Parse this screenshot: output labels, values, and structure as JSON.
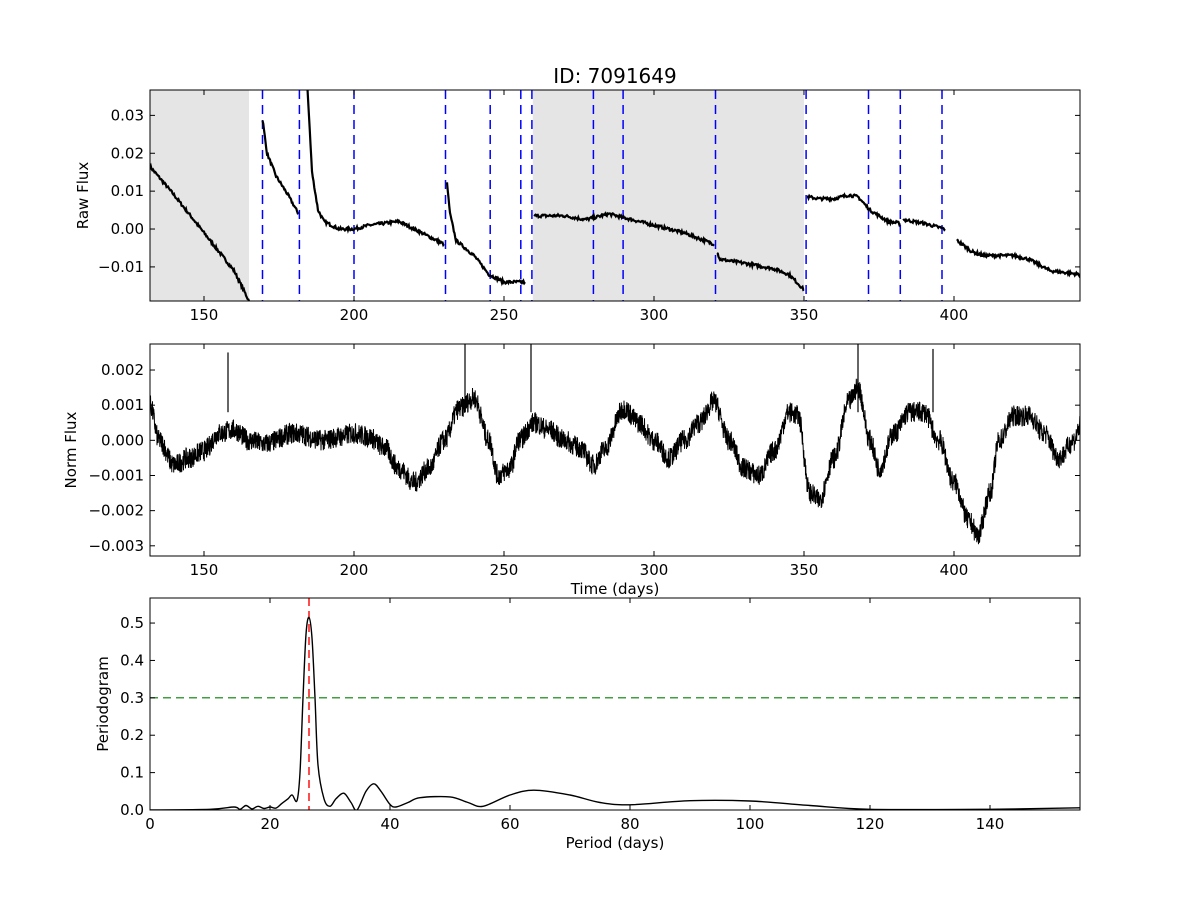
{
  "title": "ID: 7091649",
  "colors": {
    "line": "#000000",
    "marker": "#0000ff",
    "peak": "#ff0000",
    "threshold": "#008000",
    "shade": "#e5e5e5"
  },
  "chart_data": [
    {
      "type": "line",
      "name": "raw-flux",
      "ylabel": "Raw Flux",
      "xlabel": "",
      "xlim": [
        132,
        442
      ],
      "ylim": [
        -0.019,
        0.0367
      ],
      "xticks": [
        150,
        200,
        250,
        300,
        350,
        400
      ],
      "yticks": [
        -0.01,
        0.0,
        0.01,
        0.02,
        0.03
      ],
      "ytick_labels": [
        "−0.01",
        "0.00",
        "0.01",
        "0.02",
        "0.03"
      ],
      "shaded_regions": [
        [
          132,
          165
        ],
        [
          259.6,
          350
        ]
      ],
      "vertical_markers": [
        169.5,
        181.8,
        200,
        230.5,
        245.4,
        255.6,
        259.3,
        279.8,
        289.7,
        320.5,
        350.7,
        371.5,
        382.1,
        396
      ],
      "segments": [
        [
          [
            132,
            0.0165
          ],
          [
            140,
            0.009
          ],
          [
            150,
            -0.001
          ],
          [
            160,
            -0.011
          ],
          [
            165,
            -0.019
          ]
        ],
        [
          [
            169.5,
            0.029
          ],
          [
            171,
            0.02
          ],
          [
            174,
            0.014
          ],
          [
            178,
            0.009
          ],
          [
            181.5,
            0.004
          ]
        ],
        [
          [
            184.5,
            0.037
          ],
          [
            186,
            0.015
          ],
          [
            188,
            0.005
          ],
          [
            190,
            0.002
          ],
          [
            195,
            0.0
          ],
          [
            200,
            0.0
          ],
          [
            205,
            0.001
          ],
          [
            215,
            0.002
          ],
          [
            220,
            0.0
          ],
          [
            225,
            -0.002
          ],
          [
            230,
            -0.004
          ]
        ],
        [
          [
            231,
            0.012
          ],
          [
            232,
            0.004
          ],
          [
            234,
            -0.003
          ],
          [
            240,
            -0.007
          ],
          [
            245,
            -0.012
          ],
          [
            250,
            -0.014
          ],
          [
            257,
            -0.014
          ]
        ],
        [
          [
            260,
            0.0035
          ],
          [
            270,
            0.0035
          ],
          [
            277,
            0.0025
          ],
          [
            280,
            0.003
          ],
          [
            285,
            0.004
          ],
          [
            290,
            0.003
          ],
          [
            300,
            0.001
          ],
          [
            310,
            -0.001
          ],
          [
            320,
            -0.004
          ]
        ],
        [
          [
            321,
            -0.006
          ],
          [
            322,
            -0.008
          ],
          [
            330,
            -0.009
          ],
          [
            340,
            -0.0105
          ],
          [
            345,
            -0.012
          ],
          [
            350,
            -0.016
          ]
        ],
        [
          [
            351,
            0.0085
          ],
          [
            355,
            0.008
          ],
          [
            360,
            0.008
          ],
          [
            365,
            0.009
          ],
          [
            368,
            0.0085
          ],
          [
            372,
            0.005
          ],
          [
            378,
            0.002
          ],
          [
            382,
            0.0015
          ]
        ],
        [
          [
            383,
            0.0025
          ],
          [
            390,
            0.0015
          ],
          [
            397,
            0.0
          ]
        ],
        [
          [
            401,
            -0.003
          ],
          [
            406,
            -0.006
          ],
          [
            410,
            -0.007
          ],
          [
            420,
            -0.007
          ],
          [
            425,
            -0.008
          ],
          [
            432,
            -0.011
          ],
          [
            442,
            -0.012
          ]
        ]
      ]
    },
    {
      "type": "line",
      "name": "norm-flux",
      "ylabel": "Norm Flux",
      "xlabel": "Time (days)",
      "xlim": [
        132,
        442
      ],
      "ylim": [
        -0.00329,
        0.00274
      ],
      "xticks": [
        150,
        200,
        250,
        300,
        350,
        400
      ],
      "yticks": [
        -0.003,
        -0.002,
        -0.001,
        0.0,
        0.001,
        0.002
      ],
      "ytick_labels": [
        "−0.003",
        "−0.002",
        "−0.001",
        "0.000",
        "0.001",
        "0.002"
      ],
      "noise_amplitude": 0.0003,
      "trend": [
        [
          132,
          0.001
        ],
        [
          135,
          0.0
        ],
        [
          140,
          -0.0007
        ],
        [
          145,
          -0.0005
        ],
        [
          150,
          -0.0003
        ],
        [
          155,
          0.0002
        ],
        [
          160,
          0.0003
        ],
        [
          165,
          0.0
        ],
        [
          170,
          -0.0001
        ],
        [
          180,
          0.0002
        ],
        [
          190,
          0.0
        ],
        [
          195,
          0.0001
        ],
        [
          200,
          0.0002
        ],
        [
          205,
          0.0001
        ],
        [
          210,
          -0.0002
        ],
        [
          215,
          -0.0008
        ],
        [
          220,
          -0.0012
        ],
        [
          225,
          -0.0008
        ],
        [
          230,
          0.0
        ],
        [
          235,
          0.0009
        ],
        [
          240,
          0.0012
        ],
        [
          245,
          0.0
        ],
        [
          248,
          -0.001
        ],
        [
          252,
          -0.0008
        ],
        [
          255,
          0.0
        ],
        [
          260,
          0.0005
        ],
        [
          265,
          0.0003
        ],
        [
          270,
          0.0
        ],
        [
          275,
          -0.0002
        ],
        [
          280,
          -0.0007
        ],
        [
          283,
          -0.0003
        ],
        [
          290,
          0.0009
        ],
        [
          295,
          0.0005
        ],
        [
          300,
          0.0
        ],
        [
          305,
          -0.0005
        ],
        [
          310,
          0.0
        ],
        [
          315,
          0.0005
        ],
        [
          320,
          0.0011
        ],
        [
          325,
          0.0
        ],
        [
          330,
          -0.0008
        ],
        [
          335,
          -0.001
        ],
        [
          340,
          -0.0003
        ],
        [
          345,
          0.0008
        ],
        [
          348,
          0.0007
        ],
        [
          352,
          -0.0015
        ],
        [
          355,
          -0.0017
        ],
        [
          360,
          -0.0005
        ],
        [
          365,
          0.0011
        ],
        [
          368,
          0.0015
        ],
        [
          372,
          0.0
        ],
        [
          375,
          -0.0008
        ],
        [
          380,
          0.0002
        ],
        [
          385,
          0.0008
        ],
        [
          390,
          0.0008
        ],
        [
          395,
          0.0
        ],
        [
          400,
          -0.0012
        ],
        [
          405,
          -0.0023
        ],
        [
          408,
          -0.0027
        ],
        [
          412,
          -0.0015
        ],
        [
          415,
          0.0
        ],
        [
          420,
          0.0007
        ],
        [
          425,
          0.0007
        ],
        [
          430,
          0.0002
        ],
        [
          435,
          -0.0005
        ],
        [
          440,
          0.0
        ],
        [
          442,
          0.0004
        ]
      ],
      "spikes": [
        [
          158,
          0.0025
        ],
        [
          237,
          0.0028
        ],
        [
          259,
          0.0028
        ],
        [
          368,
          0.0028
        ],
        [
          393,
          0.0026
        ]
      ]
    },
    {
      "type": "line",
      "name": "periodogram",
      "ylabel": "Periodogram",
      "xlabel": "Period (days)",
      "xlim": [
        0,
        155
      ],
      "ylim": [
        0,
        0.567
      ],
      "xticks": [
        0,
        20,
        40,
        60,
        80,
        100,
        120,
        140
      ],
      "yticks": [
        0.0,
        0.1,
        0.2,
        0.3,
        0.4,
        0.5
      ],
      "ytick_labels": [
        "0.0",
        "0.1",
        "0.2",
        "0.3",
        "0.4",
        "0.5"
      ],
      "peak_period": 26.5,
      "threshold": 0.3,
      "x": [
        0,
        10,
        14,
        15,
        16,
        17,
        18,
        19,
        20,
        21,
        22,
        23,
        23.7,
        24.5,
        25,
        25.5,
        26,
        26.5,
        27,
        27.5,
        28,
        29,
        30,
        31,
        32.3,
        33.5,
        34.5,
        36,
        37.3,
        38.5,
        40,
        41,
        43,
        45,
        50,
        53,
        55.5,
        60,
        64,
        70,
        75,
        80,
        90,
        100,
        110,
        120,
        140,
        155
      ],
      "y": [
        0,
        0.002,
        0.008,
        0.002,
        0.012,
        0.003,
        0.01,
        0.004,
        0.008,
        0.005,
        0.018,
        0.03,
        0.04,
        0.025,
        0.1,
        0.3,
        0.47,
        0.515,
        0.46,
        0.3,
        0.12,
        0.03,
        0.01,
        0.03,
        0.045,
        0.02,
        0.0,
        0.05,
        0.07,
        0.05,
        0.015,
        0.008,
        0.02,
        0.033,
        0.035,
        0.02,
        0.01,
        0.04,
        0.053,
        0.04,
        0.02,
        0.014,
        0.025,
        0.024,
        0.012,
        0.002,
        0.002,
        0.006
      ]
    }
  ]
}
